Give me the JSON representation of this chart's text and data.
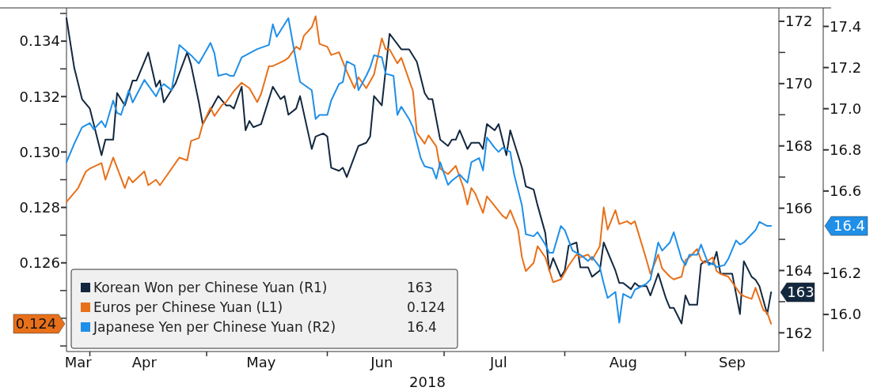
{
  "chart_data": {
    "type": "line",
    "xlabel": "2018",
    "legend": "bottom left",
    "xlim": [
      "2018-03-26",
      "2018-09-25"
    ],
    "xticks": [
      {
        "value": "2018-03-29",
        "label": "Mar"
      },
      {
        "value": "2018-04-01",
        "label": null
      },
      {
        "value": "2018-04-15",
        "label": "Apr"
      },
      {
        "value": "2018-05-01",
        "label": null
      },
      {
        "value": "2018-05-15",
        "label": "May"
      },
      {
        "value": "2018-06-01",
        "label": null
      },
      {
        "value": "2018-06-15",
        "label": "Jun"
      },
      {
        "value": "2018-07-01",
        "label": null
      },
      {
        "value": "2018-07-15",
        "label": "Jul"
      },
      {
        "value": "2018-08-01",
        "label": null
      },
      {
        "value": "2018-08-16",
        "label": "Aug"
      },
      {
        "value": "2018-09-01",
        "label": null
      },
      {
        "value": "2018-09-13",
        "label": "Sep"
      }
    ],
    "ylim": [
      0.1228,
      0.1352
    ],
    "yticks": [
      {
        "value": 0.123,
        "label": null
      },
      {
        "value": 0.124,
        "label": null
      },
      {
        "value": 0.125,
        "label": null
      },
      0.126,
      {
        "value": 0.127,
        "label": null
      },
      0.128,
      {
        "value": 0.129,
        "label": null
      },
      {
        "value": 0.13,
        "label": "0.130"
      },
      {
        "value": 0.131,
        "label": null
      },
      0.132,
      {
        "value": 0.133,
        "label": null
      },
      0.134,
      {
        "value": 0.135,
        "label": null
      }
    ],
    "y2lim": [
      161.4,
      172.43
    ],
    "y2ticks": [
      162,
      {
        "value": 163,
        "label": null
      },
      164,
      {
        "value": 165,
        "label": null
      },
      166,
      {
        "value": 167,
        "label": null
      },
      168,
      {
        "value": 169,
        "label": null
      },
      170,
      {
        "value": 171,
        "label": null
      },
      172
    ],
    "y3lim": [
      15.82,
      17.49
    ],
    "y3ticks": [
      {
        "value": 16.0,
        "label": "16.0"
      },
      16.2,
      16.6,
      16.8,
      {
        "value": 17.0,
        "label": "17.0"
      },
      17.2,
      17.4
    ],
    "annotations": [
      "163",
      "0.124",
      "16.4"
    ],
    "series": [
      {
        "name": "Korean Won per Chinese Yuan (R1)",
        "color": "#13283f",
        "axis": "y2",
        "x": [
          "2018-03-26",
          "2018-03-28",
          "2018-03-30",
          "2018-04-01",
          "2018-04-04",
          "2018-04-05",
          "2018-04-07",
          "2018-04-08",
          "2018-04-10",
          "2018-04-12",
          "2018-04-13",
          "2018-04-16",
          "2018-04-18",
          "2018-04-19",
          "2018-04-20",
          "2018-04-23",
          "2018-04-26",
          "2018-04-27",
          "2018-04-29",
          "2018-04-30",
          "2018-05-04",
          "2018-05-06",
          "2018-05-07",
          "2018-05-08",
          "2018-05-10",
          "2018-05-11",
          "2018-05-12",
          "2018-05-13",
          "2018-05-15",
          "2018-05-18",
          "2018-05-20",
          "2018-05-21",
          "2018-05-22",
          "2018-05-24",
          "2018-05-25",
          "2018-05-28",
          "2018-05-29",
          "2018-05-31",
          "2018-06-01",
          "2018-06-02",
          "2018-06-04",
          "2018-06-05",
          "2018-06-06",
          "2018-06-09",
          "2018-06-11",
          "2018-06-12",
          "2018-06-13",
          "2018-06-15",
          "2018-06-17",
          "2018-06-20",
          "2018-06-22",
          "2018-06-24",
          "2018-06-26",
          "2018-06-27",
          "2018-06-28",
          "2018-06-30",
          "2018-07-02",
          "2018-07-03",
          "2018-07-04",
          "2018-07-05",
          "2018-07-07",
          "2018-07-08",
          "2018-07-10",
          "2018-07-11",
          "2018-07-12",
          "2018-07-14",
          "2018-07-15",
          "2018-07-17",
          "2018-07-18",
          "2018-07-20",
          "2018-07-21",
          "2018-07-22",
          "2018-07-24",
          "2018-07-25",
          "2018-07-27",
          "2018-07-28",
          "2018-07-29",
          "2018-07-31",
          "2018-08-01",
          "2018-08-02",
          "2018-08-04",
          "2018-08-05",
          "2018-08-07",
          "2018-08-08",
          "2018-08-10",
          "2018-08-11",
          "2018-08-14",
          "2018-08-15",
          "2018-08-16",
          "2018-08-18",
          "2018-08-19",
          "2018-08-20",
          "2018-08-22",
          "2018-08-23",
          "2018-08-25",
          "2018-08-27",
          "2018-08-28",
          "2018-08-29",
          "2018-08-31",
          "2018-09-01",
          "2018-09-02",
          "2018-09-04",
          "2018-09-05",
          "2018-09-06",
          "2018-09-08",
          "2018-09-09",
          "2018-09-10",
          "2018-09-12",
          "2018-09-13",
          "2018-09-15",
          "2018-09-16",
          "2018-09-18",
          "2018-09-19",
          "2018-09-20",
          "2018-09-22",
          "2018-09-23"
        ],
        "values": [
          172.1,
          170.5,
          169.5,
          169.2,
          167.7,
          168.2,
          168.2,
          169.7,
          169.3,
          170.1,
          170.1,
          171.0,
          169.9,
          170.1,
          169.4,
          170.0,
          171.0,
          170.6,
          169.4,
          168.7,
          169.6,
          169.3,
          169.3,
          169.2,
          169.9,
          168.5,
          168.8,
          168.6,
          168.7,
          169.9,
          169.5,
          169.6,
          169.0,
          169.2,
          169.6,
          167.9,
          168.3,
          168.4,
          168.3,
          167.3,
          167.2,
          167.3,
          167.0,
          168.0,
          168.1,
          168.3,
          169.6,
          169.3,
          171.6,
          171.1,
          171.1,
          170.7,
          169.7,
          169.5,
          169.5,
          168.2,
          168.0,
          168.2,
          168.2,
          168.5,
          167.9,
          168.1,
          168.1,
          167.9,
          168.7,
          168.5,
          168.7,
          167.7,
          168.5,
          167.7,
          167.3,
          166.7,
          166.6,
          166.1,
          165.2,
          164.0,
          164.4,
          163.8,
          164.0,
          164.8,
          164.9,
          164.1,
          164.1,
          163.8,
          164.0,
          164.9,
          164.0,
          163.6,
          163.6,
          163.4,
          163.6,
          163.5,
          163.5,
          163.2,
          163.9,
          163.1,
          162.8,
          162.8,
          162.3,
          163.2,
          162.9,
          162.9,
          164.2,
          164.3,
          164.2,
          164.6,
          163.9,
          163.9,
          163.9,
          162.6,
          164.3,
          163.8,
          163.7,
          163.5,
          162.6,
          163.3
        ]
      },
      {
        "name": "Euros per Chinese Yuan (L1)",
        "color": "#e8701a",
        "x": [
          "2018-03-26",
          "2018-03-29",
          "2018-03-31",
          "2018-04-01",
          "2018-04-04",
          "2018-04-05",
          "2018-04-07",
          "2018-04-10",
          "2018-04-11",
          "2018-04-12",
          "2018-04-15",
          "2018-04-16",
          "2018-04-18",
          "2018-04-19",
          "2018-04-20",
          "2018-04-22",
          "2018-04-24",
          "2018-04-26",
          "2018-04-27",
          "2018-04-29",
          "2018-04-30",
          "2018-05-02",
          "2018-05-03",
          "2018-05-05",
          "2018-05-06",
          "2018-05-08",
          "2018-05-10",
          "2018-05-12",
          "2018-05-14",
          "2018-05-15",
          "2018-05-17",
          "2018-05-18",
          "2018-05-21",
          "2018-05-22",
          "2018-05-24",
          "2018-05-25",
          "2018-05-26",
          "2018-05-28",
          "2018-05-29",
          "2018-05-30",
          "2018-06-01",
          "2018-06-02",
          "2018-06-04",
          "2018-06-06",
          "2018-06-08",
          "2018-06-09",
          "2018-06-11",
          "2018-06-13",
          "2018-06-15",
          "2018-06-16",
          "2018-06-17",
          "2018-06-19",
          "2018-06-20",
          "2018-06-23",
          "2018-06-24",
          "2018-06-26",
          "2018-06-27",
          "2018-06-29",
          "2018-06-30",
          "2018-07-02",
          "2018-07-04",
          "2018-07-06",
          "2018-07-07",
          "2018-07-08",
          "2018-07-09",
          "2018-07-11",
          "2018-07-12",
          "2018-07-16",
          "2018-07-17",
          "2018-07-18",
          "2018-07-20",
          "2018-07-21",
          "2018-07-22",
          "2018-07-24",
          "2018-07-25",
          "2018-07-27",
          "2018-07-29",
          "2018-07-31",
          "2018-08-02",
          "2018-08-04",
          "2018-08-05",
          "2018-08-07",
          "2018-08-08",
          "2018-08-10",
          "2018-08-11",
          "2018-08-12",
          "2018-08-14",
          "2018-08-15",
          "2018-08-17",
          "2018-08-18",
          "2018-08-19",
          "2018-08-22",
          "2018-08-23",
          "2018-08-25",
          "2018-08-26",
          "2018-08-28",
          "2018-08-29",
          "2018-08-31",
          "2018-09-01",
          "2018-09-02",
          "2018-09-04",
          "2018-09-05",
          "2018-09-06",
          "2018-09-08",
          "2018-09-09",
          "2018-09-10",
          "2018-09-12",
          "2018-09-15",
          "2018-09-16",
          "2018-09-18",
          "2018-09-19",
          "2018-09-21",
          "2018-09-22",
          "2018-09-23"
        ],
        "values": [
          0.1282,
          0.1287,
          0.1293,
          0.1294,
          0.1296,
          0.129,
          0.1298,
          0.1287,
          0.1291,
          0.1289,
          0.1293,
          0.1288,
          0.129,
          0.1288,
          0.129,
          0.1294,
          0.1298,
          0.1297,
          0.1304,
          0.1305,
          0.131,
          0.1316,
          0.1313,
          0.1317,
          0.1318,
          0.1322,
          0.1325,
          0.1323,
          0.1318,
          0.1321,
          0.1331,
          0.1331,
          0.1333,
          0.1334,
          0.1338,
          0.1337,
          0.1342,
          0.1345,
          0.1349,
          0.1339,
          0.1338,
          0.1335,
          0.1336,
          0.1329,
          0.1323,
          0.1327,
          0.1323,
          0.1328,
          0.1341,
          0.1337,
          0.1337,
          0.1332,
          0.1334,
          0.1322,
          0.1307,
          0.1303,
          0.1306,
          0.1302,
          0.1294,
          0.1292,
          0.1295,
          0.1287,
          0.1281,
          0.1287,
          0.1285,
          0.1278,
          0.1284,
          0.1277,
          0.1276,
          0.1279,
          0.1272,
          0.1262,
          0.1257,
          0.126,
          0.1266,
          0.1262,
          0.1253,
          0.1254,
          0.1259,
          0.1263,
          0.1262,
          0.1263,
          0.1261,
          0.1266,
          0.128,
          0.1272,
          0.1279,
          0.1274,
          0.1275,
          0.1274,
          0.1275,
          0.1261,
          0.1256,
          0.1263,
          0.1258,
          0.1255,
          0.1254,
          0.1255,
          0.1261,
          0.1262,
          0.1265,
          0.1261,
          0.126,
          0.1262,
          0.1257,
          0.1256,
          0.1255,
          0.1249,
          0.1248,
          0.1247,
          0.1251,
          0.1243,
          0.1242,
          0.1238
        ]
      },
      {
        "name": "Japanese Yen per Chinese Yuan (R2)",
        "color": "#1f8fe8",
        "axis": "y3",
        "x": [
          "2018-03-26",
          "2018-03-28",
          "2018-03-30",
          "2018-04-01",
          "2018-04-02",
          "2018-04-04",
          "2018-04-05",
          "2018-04-07",
          "2018-04-08",
          "2018-04-09",
          "2018-04-11",
          "2018-04-12",
          "2018-04-15",
          "2018-04-18",
          "2018-04-19",
          "2018-04-20",
          "2018-04-22",
          "2018-04-24",
          "2018-04-27",
          "2018-04-29",
          "2018-05-02",
          "2018-05-03",
          "2018-05-04",
          "2018-05-06",
          "2018-05-07",
          "2018-05-08",
          "2018-05-10",
          "2018-05-12",
          "2018-05-14",
          "2018-05-17",
          "2018-05-18",
          "2018-05-19",
          "2018-05-21",
          "2018-05-22",
          "2018-05-24",
          "2018-05-25",
          "2018-05-28",
          "2018-05-29",
          "2018-05-30",
          "2018-06-01",
          "2018-06-02",
          "2018-06-04",
          "2018-06-05",
          "2018-06-06",
          "2018-06-08",
          "2018-06-09",
          "2018-06-11",
          "2018-06-12",
          "2018-06-13",
          "2018-06-15",
          "2018-06-16",
          "2018-06-18",
          "2018-06-19",
          "2018-06-20",
          "2018-06-22",
          "2018-06-23",
          "2018-06-25",
          "2018-06-26",
          "2018-06-28",
          "2018-06-29",
          "2018-06-30",
          "2018-07-02",
          "2018-07-03",
          "2018-07-05",
          "2018-07-06",
          "2018-07-07",
          "2018-07-08",
          "2018-07-10",
          "2018-07-11",
          "2018-07-12",
          "2018-07-14",
          "2018-07-15",
          "2018-07-16",
          "2018-07-18",
          "2018-07-19",
          "2018-07-21",
          "2018-07-22",
          "2018-07-24",
          "2018-07-25",
          "2018-07-27",
          "2018-07-28",
          "2018-07-29",
          "2018-07-31",
          "2018-08-01",
          "2018-08-03",
          "2018-08-04",
          "2018-08-05",
          "2018-08-07",
          "2018-08-08",
          "2018-08-10",
          "2018-08-11",
          "2018-08-12",
          "2018-08-14",
          "2018-08-15",
          "2018-08-16",
          "2018-08-18",
          "2018-08-19",
          "2018-08-20",
          "2018-08-22",
          "2018-08-23",
          "2018-08-25",
          "2018-08-26",
          "2018-08-28",
          "2018-08-29",
          "2018-08-31",
          "2018-09-01",
          "2018-09-02",
          "2018-09-04",
          "2018-09-05",
          "2018-09-07",
          "2018-09-08",
          "2018-09-09",
          "2018-09-11",
          "2018-09-12",
          "2018-09-14",
          "2018-09-15",
          "2018-09-16",
          "2018-09-18",
          "2018-09-19",
          "2018-09-20",
          "2018-09-22",
          "2018-09-23"
        ],
        "values": [
          16.74,
          16.83,
          16.91,
          16.93,
          16.9,
          16.94,
          16.91,
          17.04,
          16.98,
          16.97,
          17.09,
          17.03,
          17.14,
          17.06,
          17.1,
          17.12,
          17.09,
          17.31,
          17.26,
          17.22,
          17.32,
          17.27,
          17.16,
          17.17,
          17.16,
          17.16,
          17.25,
          17.27,
          17.29,
          17.31,
          17.41,
          17.35,
          17.41,
          17.44,
          17.23,
          17.13,
          17.09,
          16.95,
          16.97,
          16.97,
          17.04,
          17.12,
          17.13,
          17.23,
          17.21,
          17.09,
          17.16,
          17.2,
          17.26,
          17.25,
          17.17,
          17.16,
          16.97,
          17.01,
          16.95,
          16.91,
          16.76,
          16.72,
          16.71,
          16.66,
          16.74,
          16.63,
          16.65,
          16.68,
          16.66,
          16.64,
          16.74,
          16.76,
          16.7,
          16.86,
          16.81,
          16.79,
          16.81,
          16.79,
          16.68,
          16.53,
          16.39,
          16.38,
          16.4,
          16.34,
          16.3,
          16.3,
          16.43,
          16.41,
          16.31,
          16.3,
          16.29,
          16.26,
          16.28,
          16.23,
          16.15,
          16.08,
          16.11,
          15.96,
          16.1,
          16.08,
          16.12,
          16.13,
          16.15,
          16.17,
          16.35,
          16.31,
          16.35,
          16.4,
          16.27,
          16.24,
          16.29,
          16.29,
          16.34,
          16.24,
          16.25,
          16.23,
          16.24,
          16.27,
          16.36,
          16.34,
          16.35,
          16.39,
          16.41,
          16.45,
          16.43,
          16.43
        ]
      }
    ]
  }
}
